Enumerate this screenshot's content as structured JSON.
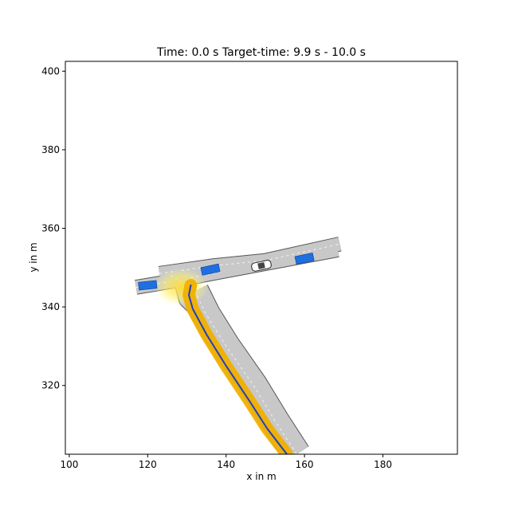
{
  "title": "Time: 0.0 s    Target-time: 9.9 s - 10.0 s",
  "chart_data": {
    "type": "scatter",
    "xlabel": "x in m",
    "ylabel": "y in m",
    "xlim": [
      99,
      199
    ],
    "ylim": [
      302.5,
      402.5
    ],
    "xticks": [
      100,
      120,
      140,
      160,
      180
    ],
    "yticks": [
      320,
      340,
      360,
      380,
      400
    ],
    "grid": false,
    "colors": {
      "road": "#c8c8c8",
      "road_edge": "#555555",
      "route_band": "#f0b000",
      "route_line": "#1f3fbf",
      "vehicle": "#1f6fe0",
      "uncertainty": "#ffe64a"
    },
    "road_centerlines": [
      {
        "points": [
          [
            117,
            345
          ],
          [
            126,
            346.5
          ],
          [
            140,
            349.2
          ],
          [
            155,
            352
          ],
          [
            168.5,
            354.5
          ]
        ],
        "width": 3.4
      },
      {
        "points": [
          [
            123,
            348.5
          ],
          [
            137,
            350.5
          ],
          [
            150,
            351.8
          ],
          [
            169,
            356
          ]
        ],
        "width": 3.4
      },
      {
        "points": [
          [
            132,
            344
          ],
          [
            135,
            338
          ],
          [
            140,
            330
          ],
          [
            147,
            320
          ],
          [
            152.5,
            311
          ],
          [
            158,
            302.5
          ]
        ],
        "width": 7.0
      },
      {
        "points": [
          [
            126,
            348
          ],
          [
            129,
            346
          ],
          [
            130,
            342
          ],
          [
            132,
            340
          ]
        ],
        "width": 4.0
      }
    ],
    "route_path": [
      [
        131,
        345.5
      ],
      [
        130.5,
        343
      ],
      [
        131.5,
        339.5
      ],
      [
        135,
        333
      ],
      [
        140,
        325
      ],
      [
        146,
        316
      ],
      [
        150.5,
        309
      ],
      [
        155.5,
        302.5
      ]
    ],
    "ego_vehicle": {
      "x": 149,
      "y": 350.5,
      "heading_deg": 12
    },
    "other_vehicles": [
      {
        "x": 120,
        "y": 345.5,
        "heading_deg": 6
      },
      {
        "x": 136,
        "y": 349.5,
        "heading_deg": 12
      },
      {
        "x": 160,
        "y": 352.3,
        "heading_deg": 12
      }
    ],
    "uncertainty_center": {
      "x": 128.5,
      "y": 345
    }
  }
}
